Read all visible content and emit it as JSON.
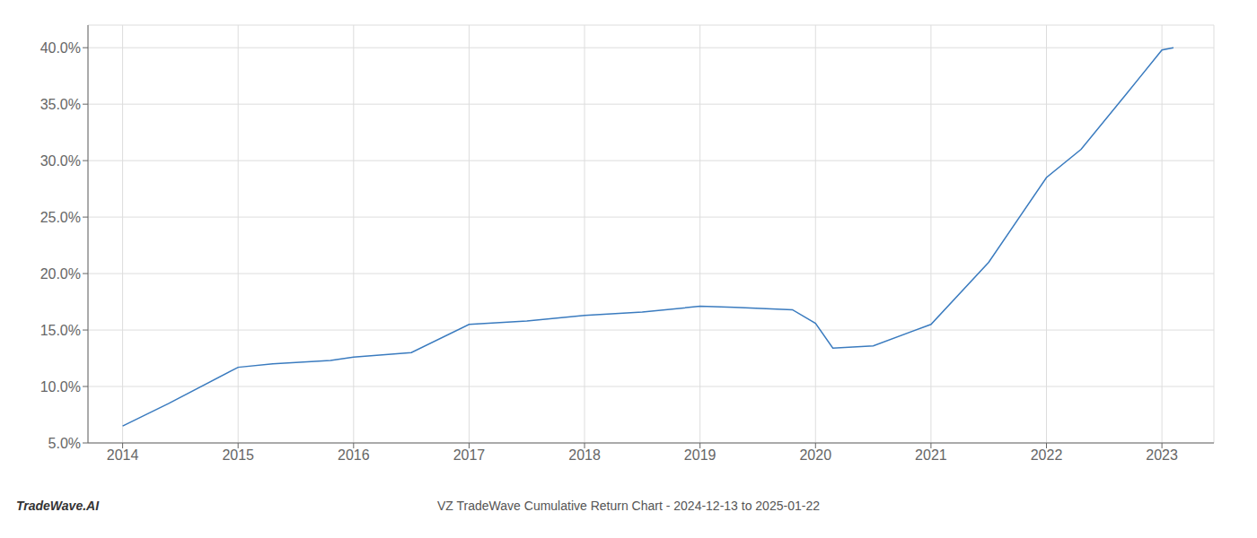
{
  "chart_data": {
    "type": "line",
    "title": "VZ TradeWave Cumulative Return Chart - 2024-12-13 to 2025-01-22",
    "annotations": [
      "TradeWave.AI"
    ],
    "x": [
      2014.0,
      2014.4,
      2015.0,
      2015.3,
      2015.8,
      2016.0,
      2016.5,
      2017.0,
      2017.5,
      2018.0,
      2018.5,
      2019.0,
      2019.3,
      2019.8,
      2020.0,
      2020.15,
      2020.5,
      2021.0,
      2021.5,
      2022.0,
      2022.3,
      2022.7,
      2023.0,
      2023.1
    ],
    "values": [
      0.065,
      0.085,
      0.117,
      0.12,
      0.123,
      0.126,
      0.13,
      0.155,
      0.158,
      0.163,
      0.166,
      0.171,
      0.17,
      0.168,
      0.156,
      0.134,
      0.136,
      0.155,
      0.21,
      0.285,
      0.31,
      0.36,
      0.398,
      0.4
    ],
    "color": "#3a7bbf",
    "xlim": [
      2013.7,
      2023.45
    ],
    "ylim": [
      0.05,
      0.42
    ],
    "xticks": [
      2014,
      2015,
      2016,
      2017,
      2018,
      2019,
      2020,
      2021,
      2022,
      2023
    ],
    "yticks": [
      {
        "value": 0.05,
        "label": "5.0%"
      },
      {
        "value": 0.1,
        "label": "10.0%"
      },
      {
        "value": 0.15,
        "label": "15.0%"
      },
      {
        "value": 0.2,
        "label": "20.0%"
      },
      {
        "value": 0.25,
        "label": "25.0%"
      },
      {
        "value": 0.3,
        "label": "30.0%"
      },
      {
        "value": 0.35,
        "label": "35.0%"
      },
      {
        "value": 0.4,
        "label": "40.0%"
      }
    ],
    "grid": true
  }
}
